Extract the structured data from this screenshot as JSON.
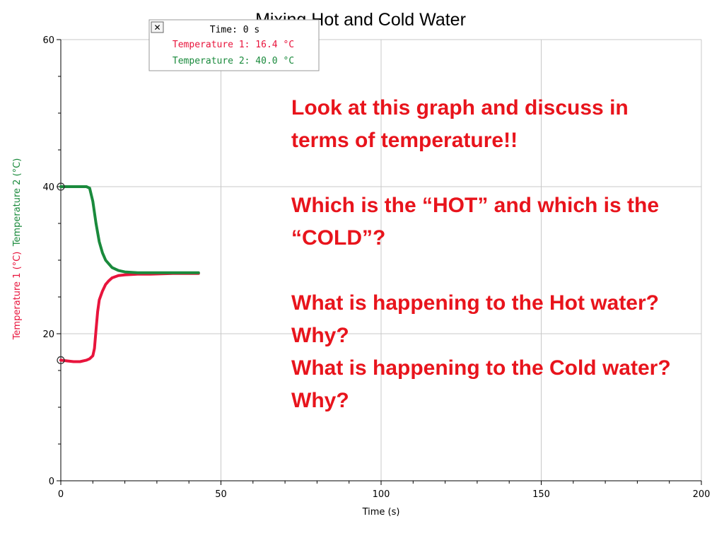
{
  "chart_data": {
    "type": "line",
    "title": "Mixing Hot and Cold Water",
    "xlabel": "Time (s)",
    "xlim": [
      0,
      200
    ],
    "ylim": [
      0,
      60
    ],
    "x_ticks": [
      "0",
      "50",
      "100",
      "150",
      "200"
    ],
    "y_ticks": [
      "0",
      "20",
      "40",
      "60"
    ],
    "grid": true,
    "series": [
      {
        "name": "Temperature 1 (°C)",
        "color": "#e8143c",
        "x": [
          0,
          2,
          4,
          6,
          8,
          9,
          10,
          10.5,
          11,
          11.5,
          12,
          13,
          14,
          15,
          16,
          18,
          20,
          24,
          28,
          35,
          43
        ],
        "y": [
          16.4,
          16.3,
          16.2,
          16.2,
          16.4,
          16.6,
          17.0,
          18.0,
          20.5,
          23.0,
          24.6,
          25.8,
          26.7,
          27.2,
          27.6,
          27.9,
          28.0,
          28.1,
          28.1,
          28.2,
          28.2
        ]
      },
      {
        "name": "Temperature 2 (°C)",
        "color": "#1a8a3c",
        "x": [
          0,
          2,
          4,
          6,
          8,
          9,
          10,
          11,
          12,
          13,
          14,
          15,
          16,
          18,
          20,
          24,
          28,
          35,
          43
        ],
        "y": [
          40.0,
          40.0,
          40.0,
          40.0,
          40.0,
          39.8,
          38.0,
          35.0,
          32.5,
          31.0,
          30.0,
          29.5,
          29.0,
          28.6,
          28.4,
          28.3,
          28.3,
          28.3,
          28.3
        ]
      }
    ]
  },
  "tooltip": {
    "close_symbol": "✕",
    "time": "Time: 0 s",
    "temp1": "Temperature 1: 16.4 °C",
    "temp2": "Temperature 2: 40.0 °C"
  },
  "question": {
    "p1": "Look at this graph and discuss in terms of temperature!!",
    "p2": "Which is the “HOT” and which is the “COLD”?",
    "p3": "What is happening to the Hot water?  Why?",
    "p4": "What is happening to the Cold water?  Why?"
  },
  "icons": {
    "close": "close-icon"
  }
}
